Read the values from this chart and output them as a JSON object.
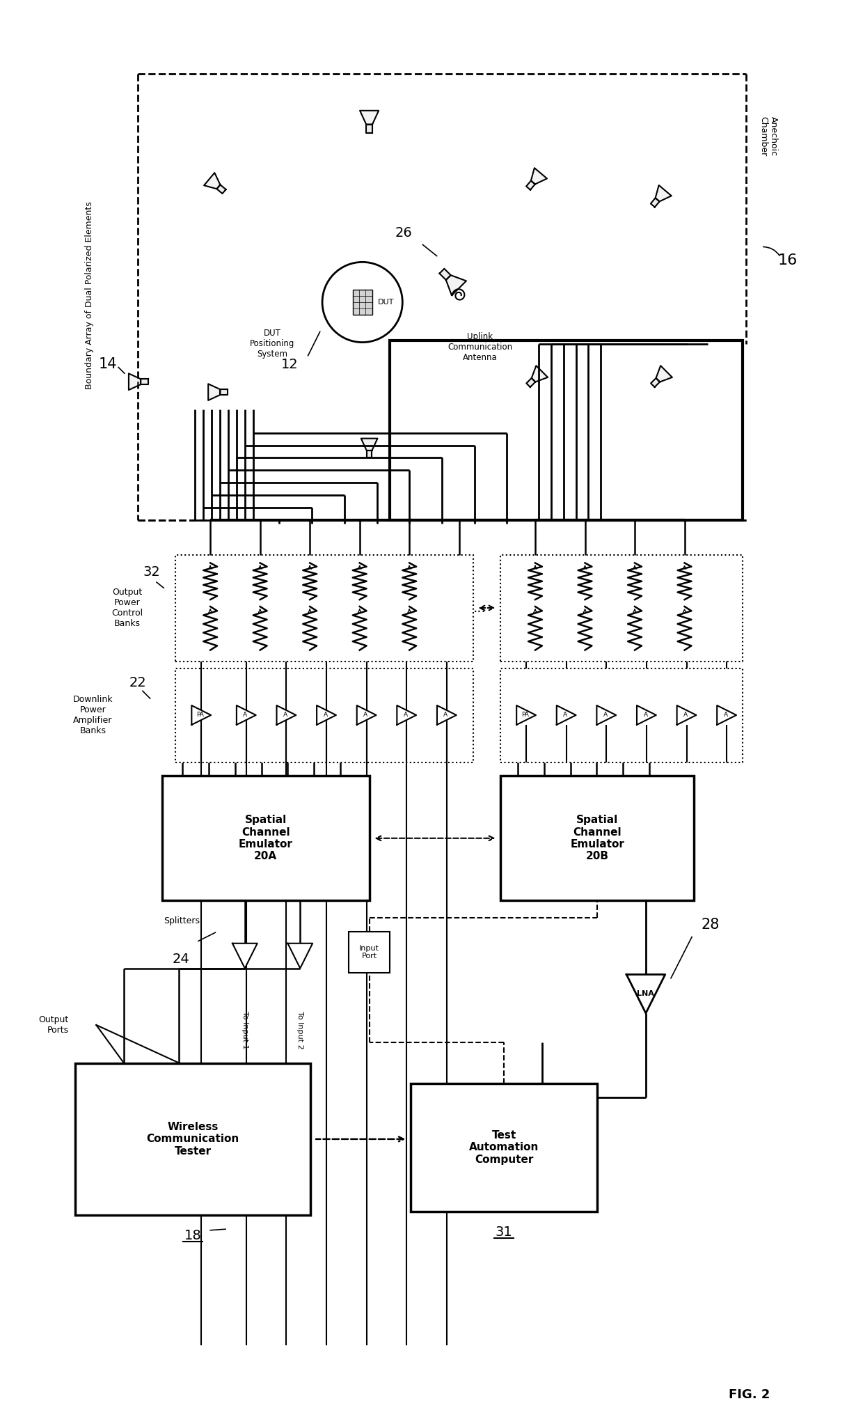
{
  "bg_color": "#ffffff",
  "line_color": "#000000",
  "title": "FIG. 2",
  "anechoic_label": "Anechoic\nChamber",
  "label16": "16",
  "boundary_array_label": "Boundary Array of Dual Polarized Elements",
  "label14": "14",
  "dut_positioning_label": "DUT\nPositioning\nSystem",
  "label12": "12",
  "uplink_label": "Uplink\nCommunication\nAntenna",
  "label26": "26",
  "output_power_label": "Output\nPower\nControl\nBanks",
  "label32": "32",
  "downlink_power_label": "Downlink\nPower\nAmplifier\nBanks",
  "label22": "22",
  "spatial_a_label": "Spatial\nChannel\nEmulator\n20A",
  "spatial_b_label": "Spatial\nChannel\nEmulator\n20B",
  "splitters_label": "Splitters",
  "label24": "24",
  "to_input1": "To Input 1",
  "to_input2": "To Input 2",
  "input_port_label": "Input\nPort",
  "output_ports_label": "Output\nPorts",
  "wireless_label": "Wireless\nCommunication\nTester",
  "label18": "18",
  "lna_label": "LNA",
  "label28": "28",
  "test_auto_label": "Test\nAutomation\nComputer",
  "label31": "31",
  "dots": "..."
}
